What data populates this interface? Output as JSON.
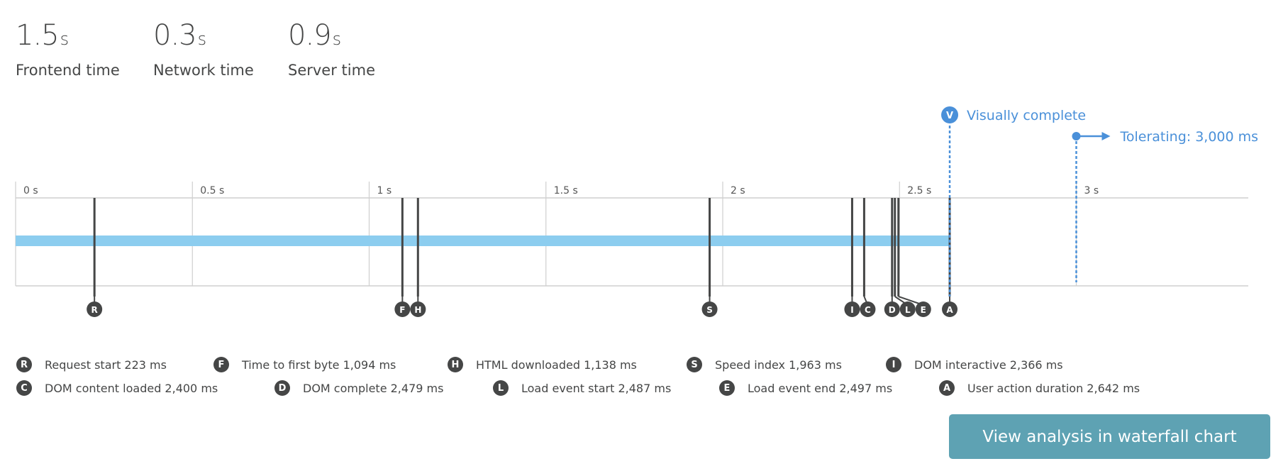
{
  "metrics": [
    {
      "value": "1.5",
      "unit": "s",
      "label": "Frontend time"
    },
    {
      "value": "0.3",
      "unit": "s",
      "label": "Network time"
    },
    {
      "value": "0.9",
      "unit": "s",
      "label": "Server time"
    }
  ],
  "chart_data": {
    "type": "timeline",
    "x_unit": "ms",
    "xlim": [
      0,
      3500
    ],
    "ticks": [
      {
        "value": 0,
        "label": "0 s"
      },
      {
        "value": 500,
        "label": "0.5 s"
      },
      {
        "value": 1000,
        "label": "1 s"
      },
      {
        "value": 1500,
        "label": "1.5 s"
      },
      {
        "value": 2000,
        "label": "2 s"
      },
      {
        "value": 2500,
        "label": "2.5 s"
      },
      {
        "value": 3000,
        "label": "3 s"
      }
    ],
    "duration_bar": {
      "start": 0,
      "end": 2642,
      "color": "#8ccdef"
    },
    "markers": [
      {
        "letter": "R",
        "label": "Request start 223 ms",
        "value": 223
      },
      {
        "letter": "F",
        "label": "Time to first byte 1,094 ms",
        "value": 1094
      },
      {
        "letter": "H",
        "label": "HTML downloaded 1,138 ms",
        "value": 1138
      },
      {
        "letter": "S",
        "label": "Speed index 1,963 ms",
        "value": 1963
      },
      {
        "letter": "I",
        "label": "DOM interactive 2,366 ms",
        "value": 2366
      },
      {
        "letter": "C",
        "label": "DOM content loaded 2,400 ms",
        "value": 2400
      },
      {
        "letter": "D",
        "label": "DOM complete 2,479 ms",
        "value": 2479
      },
      {
        "letter": "L",
        "label": "Load event start 2,487 ms",
        "value": 2487
      },
      {
        "letter": "E",
        "label": "Load event end 2,497 ms",
        "value": 2497
      },
      {
        "letter": "A",
        "label": "User action duration 2,642 ms",
        "value": 2642
      }
    ],
    "visually_complete": {
      "letter": "V",
      "label": "Visually complete",
      "value": 2642,
      "color": "#4a90d9"
    },
    "threshold": {
      "label": "Tolerating: 3,000 ms",
      "value": 3000,
      "color": "#4a90d9"
    },
    "marker_color": "#454646",
    "grid": true
  },
  "button": {
    "label": "View analysis in waterfall chart",
    "color": "#5ea2b3"
  }
}
